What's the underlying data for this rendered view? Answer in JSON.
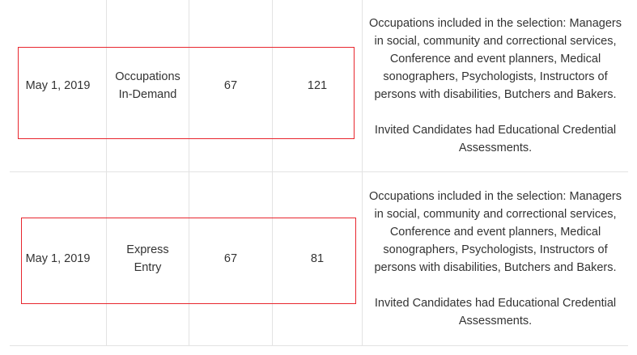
{
  "rows": [
    {
      "date": "May 1, 2019",
      "name_line1": "Occupations",
      "name_line2": "In-Demand",
      "score": "67",
      "invitations": "121",
      "note_para1": "Occupations included in the selection: Managers in social, community and correctional services, Conference and event planners, Medical sonographers, Psychologists, Instructors of persons with disabilities, Butchers and Bakers.",
      "note_para2": "Invited Candidates had Educational Credential Assessments."
    },
    {
      "date": "May 1, 2019",
      "name_line1": "Express",
      "name_line2": "Entry",
      "score": "67",
      "invitations": "81",
      "note_para1": "Occupations included in the selection: Managers in social, community and correctional services, Conference and event planners, Medical sonographers, Psychologists, Instructors of persons with disabilities, Butchers and Bakers.",
      "note_para2": "Invited Candidates had Educational Credential Assessments."
    }
  ],
  "colors": {
    "highlight_border": "#e8262e",
    "grid_line": "#e3e3e3",
    "text": "#333333"
  }
}
